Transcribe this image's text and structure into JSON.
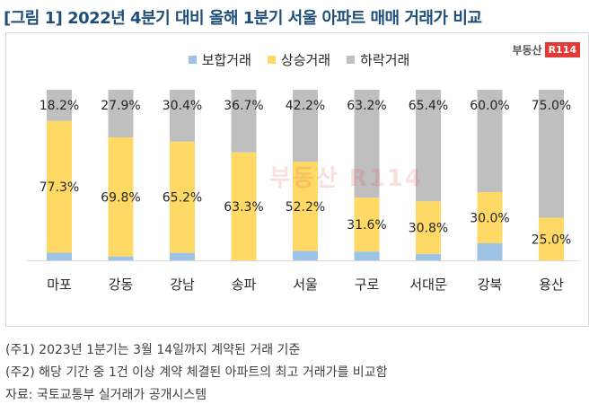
{
  "title": "[그림 1] 2022년 4분기 대비 올해 1분기 서울 아파트 매매 거래가 비교",
  "logo": {
    "text": "부동산",
    "box": "R114"
  },
  "watermark": "부동산 R114",
  "legend": [
    {
      "label": "보합거래",
      "color": "#9dc3e6"
    },
    {
      "label": "상승거래",
      "color": "#ffd966"
    },
    {
      "label": "하락거래",
      "color": "#bfbfbf"
    }
  ],
  "chart_data": {
    "type": "bar",
    "stacked": true,
    "categories": [
      "마포",
      "강동",
      "강남",
      "송파",
      "서울",
      "구로",
      "서대문",
      "강북",
      "용산"
    ],
    "series": [
      {
        "name": "보합거래",
        "values": [
          4.5,
          2.3,
          4.4,
          0.0,
          5.6,
          5.2,
          3.8,
          10.0,
          0.0
        ],
        "color": "#9dc3e6"
      },
      {
        "name": "상승거래",
        "values": [
          77.3,
          69.8,
          65.2,
          63.3,
          52.2,
          31.6,
          30.8,
          30.0,
          25.0
        ],
        "color": "#ffd966"
      },
      {
        "name": "하락거래",
        "values": [
          18.2,
          27.9,
          30.4,
          36.7,
          42.2,
          63.2,
          65.4,
          60.0,
          75.0
        ],
        "color": "#bfbfbf"
      }
    ],
    "data_labels": {
      "상승거래": [
        "77.3%",
        "69.8%",
        "65.2%",
        "63.3%",
        "52.2%",
        "31.6%",
        "30.8%",
        "30.0%",
        "25.0%"
      ],
      "하락거래": [
        "18.2%",
        "27.9%",
        "30.4%",
        "36.7%",
        "42.2%",
        "63.2%",
        "65.4%",
        "60.0%",
        "75.0%"
      ]
    },
    "ylim": [
      0,
      100
    ],
    "grid": false,
    "legend_position": "top"
  },
  "notes": [
    "(주1) 2023년 1분기는 3월 14일까지 계약된 거래 기준",
    "(주2) 해당 기간 중 1건 이상 계약 체결된 아파트의 최고 거래가를 비교함",
    "자료: 국토교통부 실거래가 공개시스템"
  ]
}
